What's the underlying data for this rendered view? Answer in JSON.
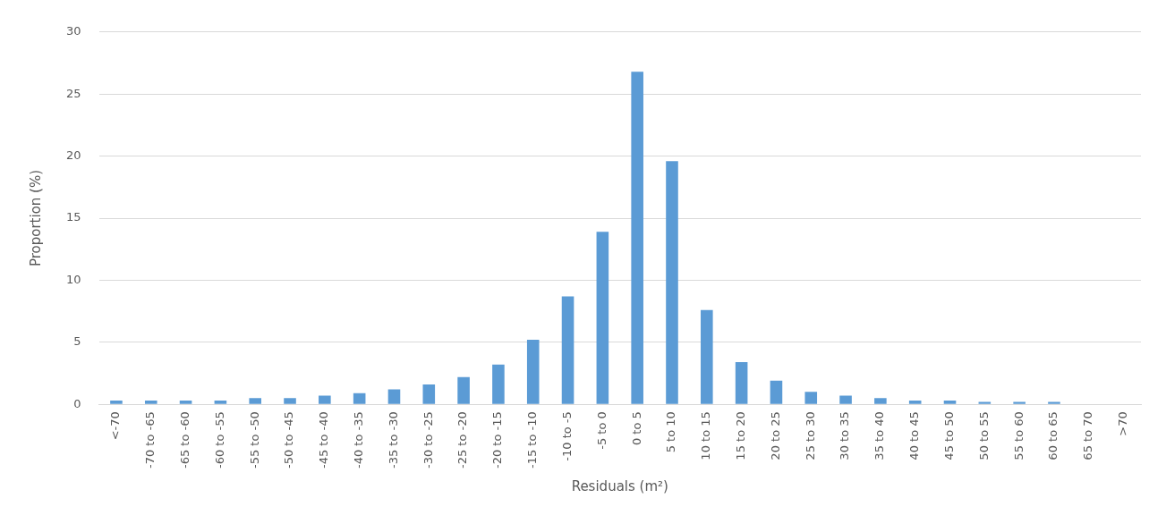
{
  "chart_data": {
    "type": "bar",
    "xlabel": "Residuals (m²)",
    "ylabel": "Proportion (%)",
    "categories": [
      "<-70",
      "-70 to -65",
      "-65 to -60",
      "-60 to -55",
      "-55 to -50",
      "-50 to -45",
      "-45 to -40",
      "-40 to -35",
      "-35 to -30",
      "-30 to -25",
      "-25 to -20",
      "-20 to -15",
      "-15 to -10",
      "-10 to -5",
      "-5 to 0",
      "0 to 5",
      "5 to 10",
      "10 to 15",
      "15 to 20",
      "20 to 25",
      "25 to 30",
      "30 to 35",
      "35 to 40",
      "40 to 45",
      "45 to 50",
      "50 to 55",
      "55 to 60",
      "60 to 65",
      "65 to 70",
      ">70"
    ],
    "values": [
      0.3,
      0.3,
      0.3,
      0.3,
      0.5,
      0.5,
      0.7,
      0.9,
      1.2,
      1.6,
      2.2,
      3.2,
      5.2,
      8.7,
      13.9,
      26.8,
      19.6,
      7.6,
      3.4,
      1.9,
      1.0,
      0.7,
      0.5,
      0.3,
      0.3,
      0.2,
      0.2,
      0.2,
      0,
      0
    ],
    "color": "#5b9bd5",
    "ylim": [
      0,
      30
    ],
    "yticks": [
      0,
      5,
      10,
      15,
      20,
      25,
      30
    ],
    "grid": "y",
    "legend": false
  }
}
